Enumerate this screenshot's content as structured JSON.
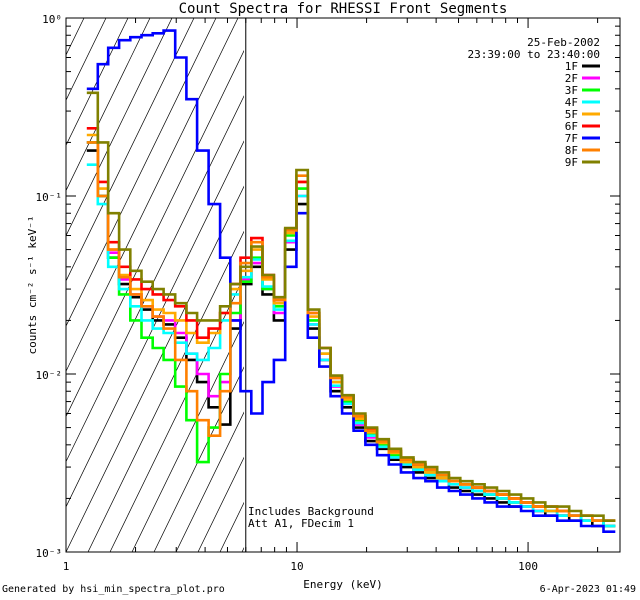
{
  "chart_data": {
    "type": "line",
    "title": "Count Spectra for RHESSI Front Segments",
    "xlabel": "Energy (keV)",
    "ylabel": "counts cm⁻² s⁻¹ keV⁻¹",
    "xscale": "log",
    "yscale": "log",
    "xlim": [
      1.0,
      250.0
    ],
    "ylim": [
      0.001,
      1.0
    ],
    "x_tick_labels": [
      {
        "value": 1,
        "label": "1"
      },
      {
        "value": 10,
        "label": "10"
      },
      {
        "value": 100,
        "label": "100"
      }
    ],
    "y_tick_labels": [
      {
        "value": 1,
        "label": "10⁰"
      },
      {
        "value": 0.1,
        "label": "10⁻¹"
      },
      {
        "value": 0.01,
        "label": "10⁻²"
      },
      {
        "value": 0.001,
        "label": "10⁻³"
      }
    ],
    "attenuator_edge_keV": 6.0,
    "legend": {
      "date": "25-Feb-2002",
      "time_range": "23:39:00 to 23:40:00",
      "entries": [
        "1F",
        "2F",
        "3F",
        "4F",
        "5F",
        "6F",
        "7F",
        "8F",
        "9F"
      ]
    },
    "annotations": [
      "Includes Background",
      "Att A1, FDecim 1"
    ],
    "series": [
      {
        "name": "1F",
        "color": "#000000",
        "x": [
          1.3,
          1.45,
          1.6,
          1.8,
          2.0,
          2.25,
          2.5,
          2.8,
          3.15,
          3.5,
          3.9,
          4.4,
          4.9,
          5.4,
          6.0,
          6.7,
          7.5,
          8.4,
          9.4,
          10.5,
          11.8,
          13.2,
          14.8,
          16.6,
          18.6,
          21,
          23.5,
          26.5,
          30,
          34,
          38,
          43,
          48,
          54,
          61,
          69,
          78,
          88,
          99,
          112,
          126,
          142,
          160,
          180,
          200,
          225
        ],
        "values": [
          0.18,
          0.1,
          0.045,
          0.032,
          0.027,
          0.023,
          0.02,
          0.019,
          0.016,
          0.012,
          0.009,
          0.0065,
          0.0052,
          0.018,
          0.032,
          0.04,
          0.028,
          0.02,
          0.05,
          0.09,
          0.018,
          0.012,
          0.008,
          0.0065,
          0.005,
          0.0042,
          0.0038,
          0.0033,
          0.003,
          0.0028,
          0.0026,
          0.0025,
          0.0023,
          0.0022,
          0.0021,
          0.002,
          0.0019,
          0.0018,
          0.0018,
          0.0017,
          0.0016,
          0.0016,
          0.0015,
          0.0015,
          0.0014,
          0.0014
        ]
      },
      {
        "name": "2F",
        "color": "#ff00ff",
        "x": [
          1.3,
          1.45,
          1.6,
          1.8,
          2.0,
          2.25,
          2.5,
          2.8,
          3.15,
          3.5,
          3.9,
          4.4,
          4.9,
          5.4,
          6.0,
          6.7,
          7.5,
          8.4,
          9.4,
          10.5,
          11.8,
          13.2,
          14.8,
          16.6,
          18.6,
          21,
          23.5,
          26.5,
          30,
          34,
          38,
          43,
          48,
          54,
          61,
          69,
          78,
          88,
          99,
          112,
          126,
          142,
          160,
          180,
          200,
          225
        ],
        "values": [
          0.2,
          0.1,
          0.048,
          0.034,
          0.028,
          0.024,
          0.021,
          0.02,
          0.017,
          0.013,
          0.01,
          0.0075,
          0.009,
          0.02,
          0.034,
          0.042,
          0.03,
          0.022,
          0.055,
          0.1,
          0.019,
          0.012,
          0.0085,
          0.0068,
          0.0052,
          0.0044,
          0.0039,
          0.0034,
          0.0031,
          0.0029,
          0.0027,
          0.0025,
          0.0024,
          0.0023,
          0.0022,
          0.0021,
          0.002,
          0.0019,
          0.0018,
          0.0017,
          0.0017,
          0.0016,
          0.0016,
          0.0015,
          0.0015,
          0.0014
        ]
      },
      {
        "name": "3F",
        "color": "#00ff00",
        "x": [
          1.3,
          1.45,
          1.6,
          1.8,
          2.0,
          2.25,
          2.5,
          2.8,
          3.15,
          3.5,
          3.9,
          4.4,
          4.9,
          5.4,
          6.0,
          6.7,
          7.5,
          8.4,
          9.4,
          10.5,
          11.8,
          13.2,
          14.8,
          16.6,
          18.6,
          21,
          23.5,
          26.5,
          30,
          34,
          38,
          43,
          48,
          54,
          61,
          69,
          78,
          88,
          99,
          112,
          126,
          142,
          160,
          180,
          200,
          225
        ],
        "values": [
          0.2,
          0.1,
          0.045,
          0.028,
          0.02,
          0.016,
          0.014,
          0.012,
          0.0085,
          0.0055,
          0.0032,
          0.005,
          0.01,
          0.022,
          0.033,
          0.045,
          0.03,
          0.024,
          0.06,
          0.11,
          0.02,
          0.013,
          0.009,
          0.007,
          0.0055,
          0.0046,
          0.004,
          0.0035,
          0.0032,
          0.003,
          0.0028,
          0.0026,
          0.0025,
          0.0024,
          0.0022,
          0.0021,
          0.002,
          0.0019,
          0.0019,
          0.0018,
          0.0017,
          0.0016,
          0.0016,
          0.0015,
          0.0015,
          0.0014
        ]
      },
      {
        "name": "4F",
        "color": "#00ffff",
        "x": [
          1.3,
          1.45,
          1.6,
          1.8,
          2.0,
          2.25,
          2.5,
          2.8,
          3.15,
          3.5,
          3.9,
          4.4,
          4.9,
          5.4,
          6.0,
          6.7,
          7.5,
          8.4,
          9.4,
          10.5,
          11.8,
          13.2,
          14.8,
          16.6,
          18.6,
          21,
          23.5,
          26.5,
          30,
          34,
          38,
          43,
          48,
          54,
          61,
          69,
          78,
          88,
          99,
          112,
          126,
          142,
          160,
          180,
          200,
          225
        ],
        "values": [
          0.15,
          0.09,
          0.04,
          0.03,
          0.024,
          0.02,
          0.018,
          0.017,
          0.015,
          0.013,
          0.012,
          0.014,
          0.02,
          0.028,
          0.035,
          0.044,
          0.031,
          0.023,
          0.056,
          0.1,
          0.019,
          0.012,
          0.0086,
          0.0068,
          0.0053,
          0.0045,
          0.0039,
          0.0034,
          0.0031,
          0.0029,
          0.0027,
          0.0025,
          0.0024,
          0.0023,
          0.0022,
          0.0021,
          0.002,
          0.0019,
          0.0018,
          0.0017,
          0.0017,
          0.0016,
          0.0016,
          0.0015,
          0.0015,
          0.0014
        ]
      },
      {
        "name": "5F",
        "color": "#ffaa00",
        "x": [
          1.3,
          1.45,
          1.6,
          1.8,
          2.0,
          2.25,
          2.5,
          2.8,
          3.15,
          3.5,
          3.9,
          4.4,
          4.9,
          5.4,
          6.0,
          6.7,
          7.5,
          8.4,
          9.4,
          10.5,
          11.8,
          13.2,
          14.8,
          16.6,
          18.6,
          21,
          23.5,
          26.5,
          30,
          34,
          38,
          43,
          48,
          54,
          61,
          69,
          78,
          88,
          99,
          112,
          126,
          142,
          160,
          180,
          200,
          225
        ],
        "values": [
          0.22,
          0.11,
          0.05,
          0.036,
          0.03,
          0.026,
          0.023,
          0.022,
          0.02,
          0.017,
          0.015,
          0.017,
          0.022,
          0.03,
          0.038,
          0.05,
          0.034,
          0.025,
          0.062,
          0.12,
          0.021,
          0.013,
          0.009,
          0.0072,
          0.0056,
          0.0047,
          0.0041,
          0.0036,
          0.0032,
          0.003,
          0.0028,
          0.0026,
          0.0025,
          0.0024,
          0.0023,
          0.0022,
          0.0021,
          0.002,
          0.0019,
          0.0018,
          0.0017,
          0.0017,
          0.0016,
          0.0016,
          0.0015,
          0.0015
        ]
      },
      {
        "name": "6F",
        "color": "#ff0000",
        "x": [
          1.3,
          1.45,
          1.6,
          1.8,
          2.0,
          2.25,
          2.5,
          2.8,
          3.15,
          3.5,
          3.9,
          4.4,
          4.9,
          5.4,
          6.0,
          6.7,
          7.5,
          8.4,
          9.4,
          10.5,
          11.8,
          13.2,
          14.8,
          16.6,
          18.6,
          21,
          23.5,
          26.5,
          30,
          34,
          38,
          43,
          48,
          54,
          61,
          69,
          78,
          88,
          99,
          112,
          126,
          142,
          160,
          180,
          200,
          225
        ],
        "values": [
          0.24,
          0.12,
          0.055,
          0.04,
          0.034,
          0.03,
          0.028,
          0.026,
          0.024,
          0.02,
          0.016,
          0.018,
          0.022,
          0.032,
          0.045,
          0.058,
          0.036,
          0.026,
          0.065,
          0.12,
          0.022,
          0.014,
          0.0095,
          0.0075,
          0.0058,
          0.0049,
          0.0042,
          0.0037,
          0.0033,
          0.0031,
          0.0029,
          0.0027,
          0.0025,
          0.0024,
          0.0023,
          0.0022,
          0.0021,
          0.002,
          0.0019,
          0.0018,
          0.0018,
          0.0017,
          0.0016,
          0.0016,
          0.0015,
          0.0015
        ]
      },
      {
        "name": "7F",
        "color": "#0000ff",
        "x": [
          1.3,
          1.45,
          1.6,
          1.8,
          2.0,
          2.25,
          2.5,
          2.8,
          3.15,
          3.5,
          3.9,
          4.4,
          4.9,
          5.4,
          6.0,
          6.7,
          7.5,
          8.4,
          9.4,
          10.5,
          11.8,
          13.2,
          14.8,
          16.6,
          18.6,
          21,
          23.5,
          26.5,
          30,
          34,
          38,
          43,
          48,
          54,
          61,
          69,
          78,
          88,
          99,
          112,
          126,
          142,
          160,
          180,
          200,
          225
        ],
        "values": [
          0.4,
          0.55,
          0.68,
          0.75,
          0.78,
          0.8,
          0.82,
          0.85,
          0.6,
          0.35,
          0.18,
          0.09,
          0.045,
          0.02,
          0.008,
          0.006,
          0.009,
          0.012,
          0.04,
          0.08,
          0.016,
          0.011,
          0.0075,
          0.006,
          0.0048,
          0.004,
          0.0035,
          0.0031,
          0.0028,
          0.0026,
          0.0025,
          0.0023,
          0.0022,
          0.0021,
          0.002,
          0.0019,
          0.0018,
          0.0018,
          0.0017,
          0.0016,
          0.0016,
          0.0015,
          0.0015,
          0.0014,
          0.0014,
          0.0013
        ]
      },
      {
        "name": "8F",
        "color": "#ff8000",
        "x": [
          1.3,
          1.45,
          1.6,
          1.8,
          2.0,
          2.25,
          2.5,
          2.8,
          3.15,
          3.5,
          3.9,
          4.4,
          4.9,
          5.4,
          6.0,
          6.7,
          7.5,
          8.4,
          9.4,
          10.5,
          11.8,
          13.2,
          14.8,
          16.6,
          18.6,
          21,
          23.5,
          26.5,
          30,
          34,
          38,
          43,
          48,
          54,
          61,
          69,
          78,
          88,
          99,
          112,
          126,
          142,
          160,
          180,
          200,
          225
        ],
        "values": [
          0.2,
          0.1,
          0.05,
          0.035,
          0.028,
          0.024,
          0.021,
          0.018,
          0.012,
          0.008,
          0.0055,
          0.0045,
          0.008,
          0.025,
          0.042,
          0.055,
          0.035,
          0.026,
          0.064,
          0.13,
          0.022,
          0.014,
          0.0095,
          0.0074,
          0.0058,
          0.0048,
          0.0042,
          0.0037,
          0.0033,
          0.0031,
          0.0029,
          0.0027,
          0.0025,
          0.0024,
          0.0023,
          0.0022,
          0.0021,
          0.002,
          0.0019,
          0.0018,
          0.0018,
          0.0017,
          0.0016,
          0.0016,
          0.0015,
          0.0015
        ]
      },
      {
        "name": "9F",
        "color": "#808000",
        "x": [
          1.3,
          1.45,
          1.6,
          1.8,
          2.0,
          2.25,
          2.5,
          2.8,
          3.15,
          3.5,
          3.9,
          4.4,
          4.9,
          5.4,
          6.0,
          6.7,
          7.5,
          8.4,
          9.4,
          10.5,
          11.8,
          13.2,
          14.8,
          16.6,
          18.6,
          21,
          23.5,
          26.5,
          30,
          34,
          38,
          43,
          48,
          54,
          61,
          69,
          78,
          88,
          99,
          112,
          126,
          142,
          160,
          180,
          200,
          225
        ],
        "values": [
          0.38,
          0.2,
          0.08,
          0.05,
          0.038,
          0.033,
          0.03,
          0.028,
          0.025,
          0.022,
          0.02,
          0.02,
          0.024,
          0.032,
          0.04,
          0.052,
          0.036,
          0.027,
          0.066,
          0.14,
          0.023,
          0.014,
          0.0098,
          0.0076,
          0.006,
          0.005,
          0.0043,
          0.0038,
          0.0034,
          0.0032,
          0.003,
          0.0028,
          0.0026,
          0.0025,
          0.0024,
          0.0023,
          0.0022,
          0.0021,
          0.002,
          0.0019,
          0.0018,
          0.0018,
          0.0017,
          0.0016,
          0.0016,
          0.0015
        ]
      }
    ]
  },
  "footer": {
    "left": "Generated by hsi_min_spectra_plot.pro",
    "right": "6-Apr-2023 01:49"
  }
}
